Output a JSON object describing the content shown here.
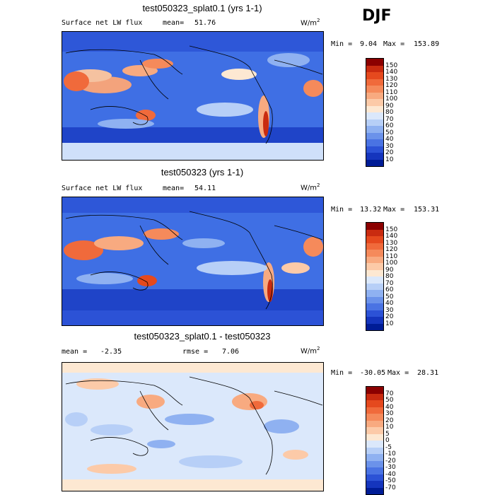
{
  "season": "DJF",
  "panels": [
    {
      "title": "test050323_splat0.1 (yrs 1-1)",
      "left_label": "Surface net LW flux",
      "mean_label": "mean=",
      "mean_value": "51.76",
      "units": "W/m",
      "units_exp": "2",
      "min_label": "Min =",
      "min_value": "9.04",
      "max_label": "Max =",
      "max_value": "153.89",
      "levels": [
        "150",
        "140",
        "130",
        "120",
        "110",
        "100",
        "90",
        "80",
        "70",
        "60",
        "50",
        "40",
        "30",
        "20",
        "10"
      ],
      "colors": [
        "#8b0000",
        "#c92b10",
        "#e5491e",
        "#f06a3b",
        "#f58a5b",
        "#f8aa80",
        "#fccaa8",
        "#fde8d2",
        "#dbe8fb",
        "#b7cff7",
        "#8fb1f1",
        "#6b92ea",
        "#4a73e3",
        "#2c52d6",
        "#1535bd",
        "#001c96"
      ]
    },
    {
      "title": "test050323 (yrs 1-1)",
      "left_label": "Surface net LW flux",
      "mean_label": "mean=",
      "mean_value": "54.11",
      "units": "W/m",
      "units_exp": "2",
      "min_label": "Min =",
      "min_value": "13.32",
      "max_label": "Max =",
      "max_value": "153.31",
      "levels": [
        "150",
        "140",
        "130",
        "120",
        "110",
        "100",
        "90",
        "80",
        "70",
        "60",
        "50",
        "40",
        "30",
        "20",
        "10"
      ],
      "colors": [
        "#8b0000",
        "#c92b10",
        "#e5491e",
        "#f06a3b",
        "#f58a5b",
        "#f8aa80",
        "#fccaa8",
        "#fde8d2",
        "#dbe8fb",
        "#b7cff7",
        "#8fb1f1",
        "#6b92ea",
        "#4a73e3",
        "#2c52d6",
        "#1535bd",
        "#001c96"
      ]
    },
    {
      "title": "test050323_splat0.1 - test050323",
      "left_label": "mean =",
      "mean_label": "",
      "mean_value": "-2.35",
      "rmse_label": "rmse =",
      "rmse_value": "7.06",
      "units": "W/m",
      "units_exp": "2",
      "min_label": "Min =",
      "min_value": "-30.05",
      "max_label": "Max =",
      "max_value": "28.31",
      "levels": [
        "70",
        "50",
        "40",
        "30",
        "20",
        "10",
        "5",
        "0",
        "-5",
        "-10",
        "-20",
        "-30",
        "-40",
        "-50",
        "-70"
      ],
      "colors": [
        "#8b0000",
        "#c92b10",
        "#e5491e",
        "#f06a3b",
        "#f58a5b",
        "#f8aa80",
        "#fccaa8",
        "#fde8d2",
        "#dbe8fb",
        "#b7cff7",
        "#8fb1f1",
        "#6b92ea",
        "#4a73e3",
        "#2c52d6",
        "#1535bd",
        "#001c96"
      ]
    }
  ]
}
